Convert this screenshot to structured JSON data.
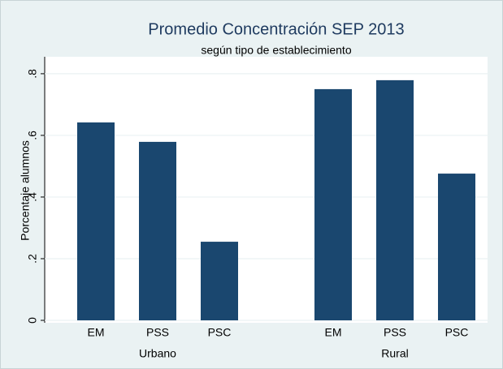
{
  "chart_data": {
    "type": "bar",
    "title": "Promedio Concentración SEP 2013",
    "subtitle": "según tipo de establecimiento",
    "y_label": "Porcentaje alumnos",
    "color": "#1a476f",
    "grid": true,
    "groups": [
      {
        "name": "Urbano",
        "categories": [
          "EM",
          "PSS",
          "PSC"
        ],
        "values": [
          0.642,
          0.579,
          0.255
        ]
      },
      {
        "name": "Rural",
        "categories": [
          "EM",
          "PSS",
          "PSC"
        ],
        "values": [
          0.75,
          0.779,
          0.476
        ]
      }
    ],
    "ylim": [
      0,
      0.855
    ],
    "yticks": [
      0,
      {
        "value": 0.2,
        "label": ".2"
      },
      {
        "value": 0.4,
        "label": ".4"
      },
      {
        "value": 0.6,
        "label": ".6"
      },
      {
        "value": 0.8,
        "label": ".8"
      }
    ]
  }
}
